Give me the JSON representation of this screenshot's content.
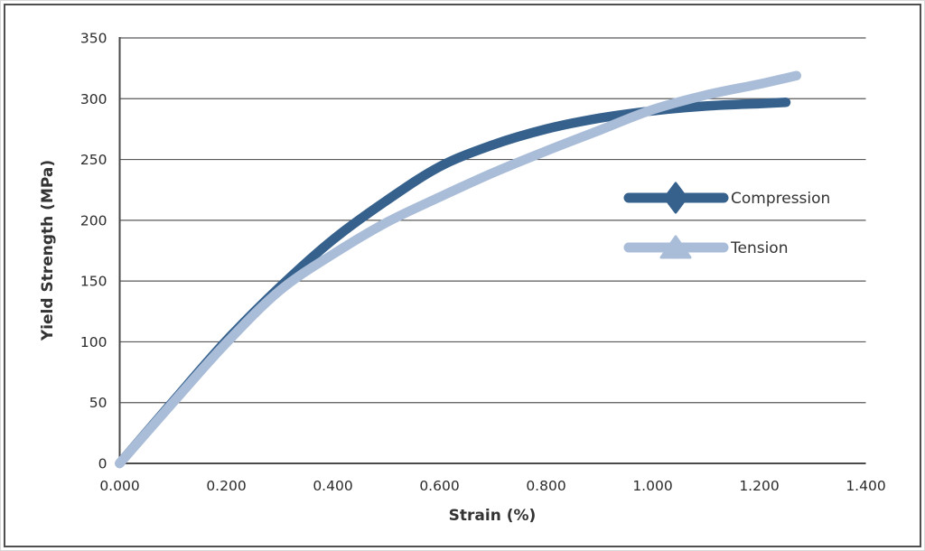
{
  "figure": {
    "background": "#ffffff",
    "frame_border_color": "#4f4f4f",
    "grid_color": "#58585a",
    "axis_color": "#4a4a4a",
    "tick_text_color": "#2b2b2b",
    "label_text_color": "#333333"
  },
  "chart_data": {
    "type": "line",
    "title": "",
    "xlabel": "Strain (%)",
    "ylabel": "Yield Strength (MPa)",
    "xlim": [
      0,
      1.4
    ],
    "ylim": [
      0,
      350
    ],
    "grid": "horizontal",
    "legend_position": "inside-right",
    "x_tick_values": [
      0,
      0.2,
      0.4,
      0.6,
      0.8,
      1.0,
      1.2,
      1.4
    ],
    "x_tick_labels": [
      "0.000",
      "0.200",
      "0.400",
      "0.600",
      "0.800",
      "1.000",
      "1.200",
      "1.400"
    ],
    "y_tick_values": [
      0,
      50,
      100,
      150,
      200,
      250,
      300,
      350
    ],
    "y_tick_labels": [
      "0",
      "50",
      "100",
      "150",
      "200",
      "250",
      "300",
      "350"
    ],
    "series": [
      {
        "name": "Compression",
        "color": "#36618c",
        "marker": "diamond",
        "x": [
          0,
          0.1,
          0.2,
          0.3,
          0.4,
          0.5,
          0.6,
          0.7,
          0.8,
          0.9,
          1.0,
          1.1,
          1.2,
          1.25
        ],
        "y": [
          0,
          51,
          101,
          145,
          184,
          216,
          244,
          262,
          275,
          284,
          290,
          294,
          296,
          297
        ]
      },
      {
        "name": "Tension",
        "color": "#a9bcd8",
        "marker": "triangle",
        "x": [
          0,
          0.1,
          0.2,
          0.3,
          0.4,
          0.5,
          0.6,
          0.7,
          0.8,
          0.9,
          1.0,
          1.1,
          1.2,
          1.27
        ],
        "y": [
          0,
          50,
          99,
          142,
          172,
          198,
          219,
          239,
          257,
          274,
          291,
          303,
          312,
          319
        ]
      }
    ]
  }
}
